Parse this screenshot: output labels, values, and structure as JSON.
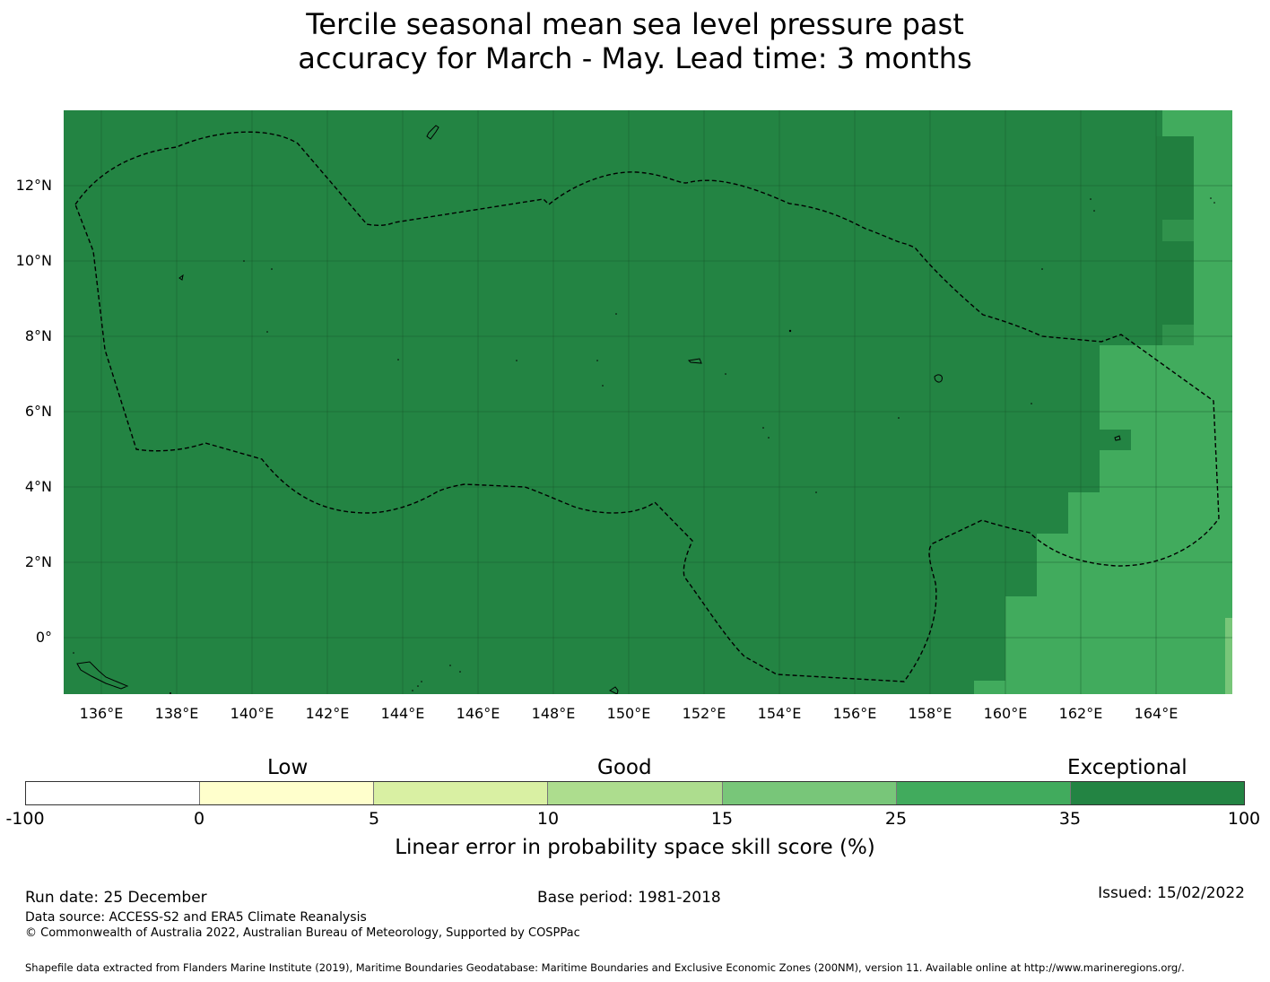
{
  "title": {
    "line1": "Tercile seasonal mean sea level pressure past",
    "line2": "accuracy for March - May. Lead time: 3 months"
  },
  "map": {
    "lat_labels": [
      "12°N",
      "10°N",
      "8°N",
      "6°N",
      "4°N",
      "2°N",
      "0°"
    ],
    "lon_labels": [
      "136°E",
      "138°E",
      "140°E",
      "142°E",
      "144°E",
      "146°E",
      "148°E",
      "150°E",
      "152°E",
      "154°E",
      "156°E",
      "158°E",
      "160°E",
      "162°E",
      "164°E"
    ],
    "colors": {
      "exceptional": "#238443",
      "very_good": "#41ab5d",
      "good": "#78c679"
    }
  },
  "legend": {
    "categories": [
      "Low",
      "Good",
      "Exceptional"
    ],
    "ticks": [
      "-100",
      "0",
      "5",
      "10",
      "15",
      "25",
      "35",
      "100"
    ],
    "colors": [
      "#ffffff",
      "#ffffcc",
      "#d9f0a3",
      "#addd8e",
      "#78c679",
      "#41ab5d",
      "#238443"
    ],
    "label": "Linear error in probability space skill score (%)"
  },
  "footer": {
    "run_date": "Run date: 25 December",
    "base_period": "Base period: 1981-2018",
    "issued": "Issued: 15/02/2022",
    "data_source": "Data source: ACCESS-S2 and ERA5 Climate Reanalysis",
    "copyright": "© Commonwealth of Australia 2022, Australian Bureau of Meteorology, Supported by COSPPac",
    "shapefile": "Shapefile data extracted from Flanders Marine Institute (2019), Maritime Boundaries Geodatabase: Maritime Boundaries and Exclusive Economic Zones (200NM), version 11. Available online at http://www.marineregions.org/."
  }
}
